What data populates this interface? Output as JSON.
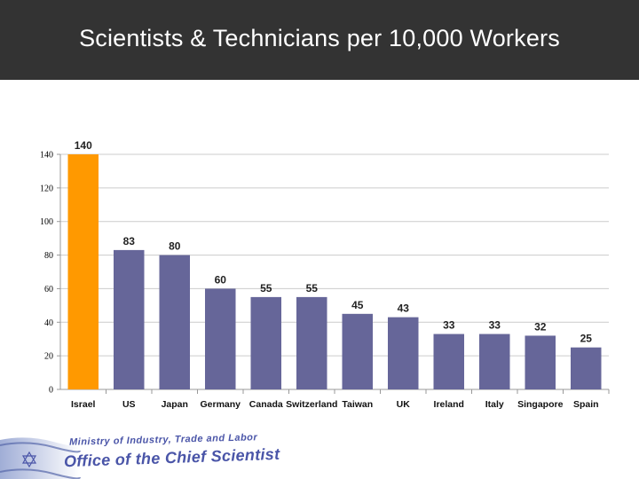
{
  "header": {
    "title": "Scientists & Technicians per 10,000 Workers"
  },
  "footer": {
    "ministry": "Ministry of Industry, Trade and Labor",
    "office": "Office of the Chief Scientist"
  },
  "colors": {
    "highlight": "#FF9900",
    "bar": "#666699",
    "header_bg": "#333333",
    "grid": "#cccccc",
    "logo_blue": "#4a55a8"
  },
  "chart_data": {
    "type": "bar",
    "title": "",
    "xlabel": "",
    "ylabel": "",
    "categories": [
      "Israel",
      "US",
      "Japan",
      "Germany",
      "Canada",
      "Switzerland",
      "Taiwan",
      "UK",
      "Ireland",
      "Italy",
      "Singapore",
      "Spain"
    ],
    "values": [
      140,
      83,
      80,
      60,
      55,
      55,
      45,
      43,
      33,
      33,
      32,
      25
    ],
    "highlight_category": "Israel",
    "ylim": [
      0,
      140
    ],
    "yticks": [
      0,
      20,
      40,
      60,
      80,
      100,
      120,
      140
    ],
    "grid": true,
    "legend": "none"
  }
}
